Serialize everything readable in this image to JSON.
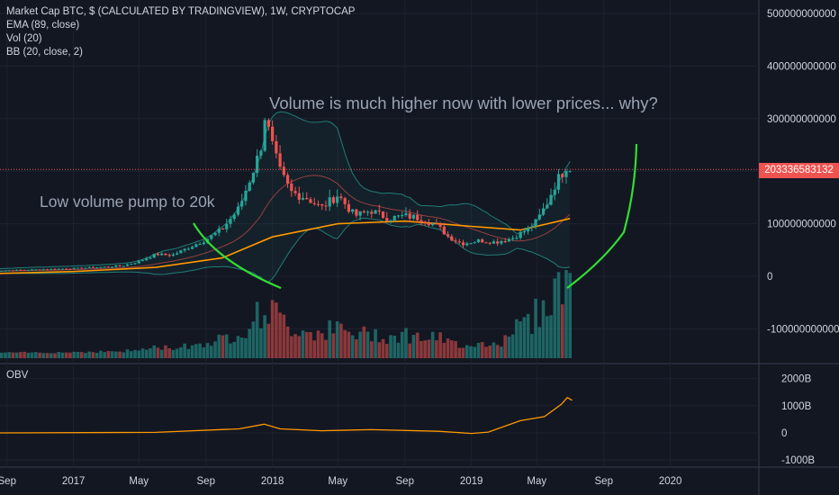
{
  "chart_data": {
    "type": "candlestick",
    "title": "Market Cap BTC, $ (CALCULATED BY TRADINGVIEW), 1W, CRYPTOCAP",
    "indicators": [
      "EMA (89, close)",
      "Vol (20)",
      "BB (20, close, 2)"
    ],
    "y_axis": {
      "ticks": [
        500000000000,
        400000000000,
        300000000000,
        200000000000,
        100000000000,
        0,
        -100000000000
      ],
      "tick_labels": [
        "500000000000",
        "400000000000",
        "300000000000",
        "",
        "100000000000",
        "0",
        "-100000000000"
      ]
    },
    "current_price_label": "203336583132",
    "current_price": 203336583132,
    "x_axis": {
      "tick_labels": [
        "Sep",
        "2017",
        "May",
        "Sep",
        "2018",
        "May",
        "Sep",
        "2019",
        "May",
        "Sep",
        "2020"
      ],
      "tick_dates": [
        "2016-09",
        "2017-01",
        "2017-05",
        "2017-09",
        "2018-01",
        "2018-05",
        "2018-09",
        "2019-01",
        "2019-05",
        "2019-09",
        "2020-01"
      ]
    },
    "market_cap_weekly": {
      "dates": [
        "2016-08",
        "2016-10",
        "2016-12",
        "2017-01",
        "2017-03",
        "2017-04",
        "2017-05",
        "2017-06",
        "2017-07",
        "2017-08",
        "2017-09",
        "2017-10",
        "2017-11",
        "2017-12-10",
        "2017-12-17",
        "2017-12-31",
        "2018-01-14",
        "2018-02-04",
        "2018-03-04",
        "2018-04-01",
        "2018-05-01",
        "2018-06-01",
        "2018-07-01",
        "2018-08-01",
        "2018-09-01",
        "2018-10-01",
        "2018-11-01",
        "2018-11-20",
        "2018-12-15",
        "2019-01-15",
        "2019-02-15",
        "2019-03-15",
        "2019-04-15",
        "2019-05-01",
        "2019-05-20",
        "2019-06-01",
        "2019-06-15",
        "2019-06-26",
        "2019-07-05"
      ],
      "values": [
        10000000000,
        12000000000,
        14000000000,
        15000000000,
        18000000000,
        20000000000,
        28000000000,
        42000000000,
        40000000000,
        55000000000,
        70000000000,
        90000000000,
        130000000000,
        240000000000,
        310000000000,
        250000000000,
        200000000000,
        160000000000,
        150000000000,
        130000000000,
        155000000000,
        115000000000,
        125000000000,
        110000000000,
        115000000000,
        110000000000,
        95000000000,
        75000000000,
        62000000000,
        68000000000,
        65000000000,
        72000000000,
        90000000000,
        105000000000,
        140000000000,
        170000000000,
        195000000000,
        215000000000,
        203336583132
      ]
    },
    "ema_89": {
      "dates": [
        "2016-08",
        "2017-01",
        "2017-06",
        "2017-10",
        "2018-01",
        "2018-05",
        "2018-09",
        "2019-01",
        "2019-04",
        "2019-07"
      ],
      "values": [
        5000000000,
        9000000000,
        17000000000,
        35000000000,
        75000000000,
        100000000000,
        105000000000,
        95000000000,
        88000000000,
        110000000000
      ]
    },
    "obv": {
      "title": "OBV",
      "tick_labels": [
        "2000B",
        "1000B",
        "0",
        "-1000B"
      ],
      "ticks": [
        2000,
        1000,
        0,
        -1000
      ],
      "dates": [
        "2016-08",
        "2017-06",
        "2017-11",
        "2017-12-17",
        "2018-01-15",
        "2018-04-01",
        "2018-07-01",
        "2018-11-01",
        "2019-01-01",
        "2019-02-01",
        "2019-04-01",
        "2019-05-15",
        "2019-06-15",
        "2019-06-26",
        "2019-07-05"
      ],
      "values": [
        0,
        20,
        150,
        320,
        150,
        80,
        120,
        60,
        -20,
        30,
        450,
        600,
        1050,
        1300,
        1200
      ]
    }
  },
  "annotations": {
    "left_note": "Low volume pump to 20k",
    "top_note": "Volume is much higher now with lower prices... why?"
  },
  "colors": {
    "background": "#131722",
    "up": "#26a69a",
    "down": "#ef5350",
    "ema": "#ff9800",
    "obv": "#ff9800",
    "bb_band": "#26a69a",
    "bb_basis": "#ef5350",
    "arrows": "#33dd33",
    "note_text": "#9aa4b4"
  }
}
